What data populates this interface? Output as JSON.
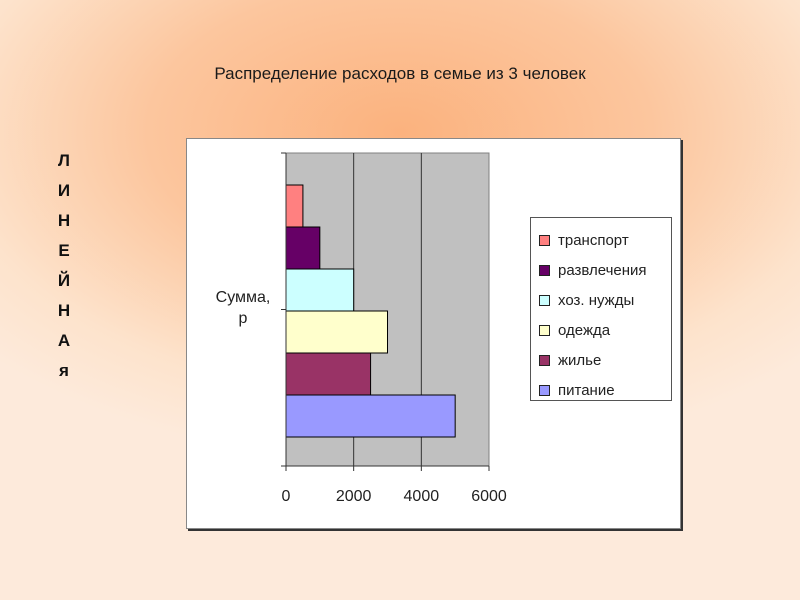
{
  "slide": {
    "title": "Распределение расходов в семье из 3 человек",
    "vertical_letters": [
      "Л",
      "И",
      "Н",
      "Е",
      "Й",
      "Н",
      "А",
      "я"
    ]
  },
  "chart_data": {
    "type": "bar",
    "orientation": "horizontal",
    "title": "",
    "category": "Сумма, р",
    "series": [
      {
        "name": "транспорт",
        "value": 500,
        "color": "#ff8080"
      },
      {
        "name": "развлечения",
        "value": 1000,
        "color": "#660066"
      },
      {
        "name": "хоз. нужды",
        "value": 2000,
        "color": "#ccffff"
      },
      {
        "name": "одежда",
        "value": 3000,
        "color": "#ffffcc"
      },
      {
        "name": "жилье",
        "value": 2500,
        "color": "#993366"
      },
      {
        "name": "питание",
        "value": 5000,
        "color": "#9999ff"
      }
    ],
    "xlim": [
      0,
      6000
    ],
    "xticks": [
      0,
      2000,
      4000,
      6000
    ],
    "grid": true,
    "plot_background": "#c0c0c0",
    "legend_position": "right"
  }
}
